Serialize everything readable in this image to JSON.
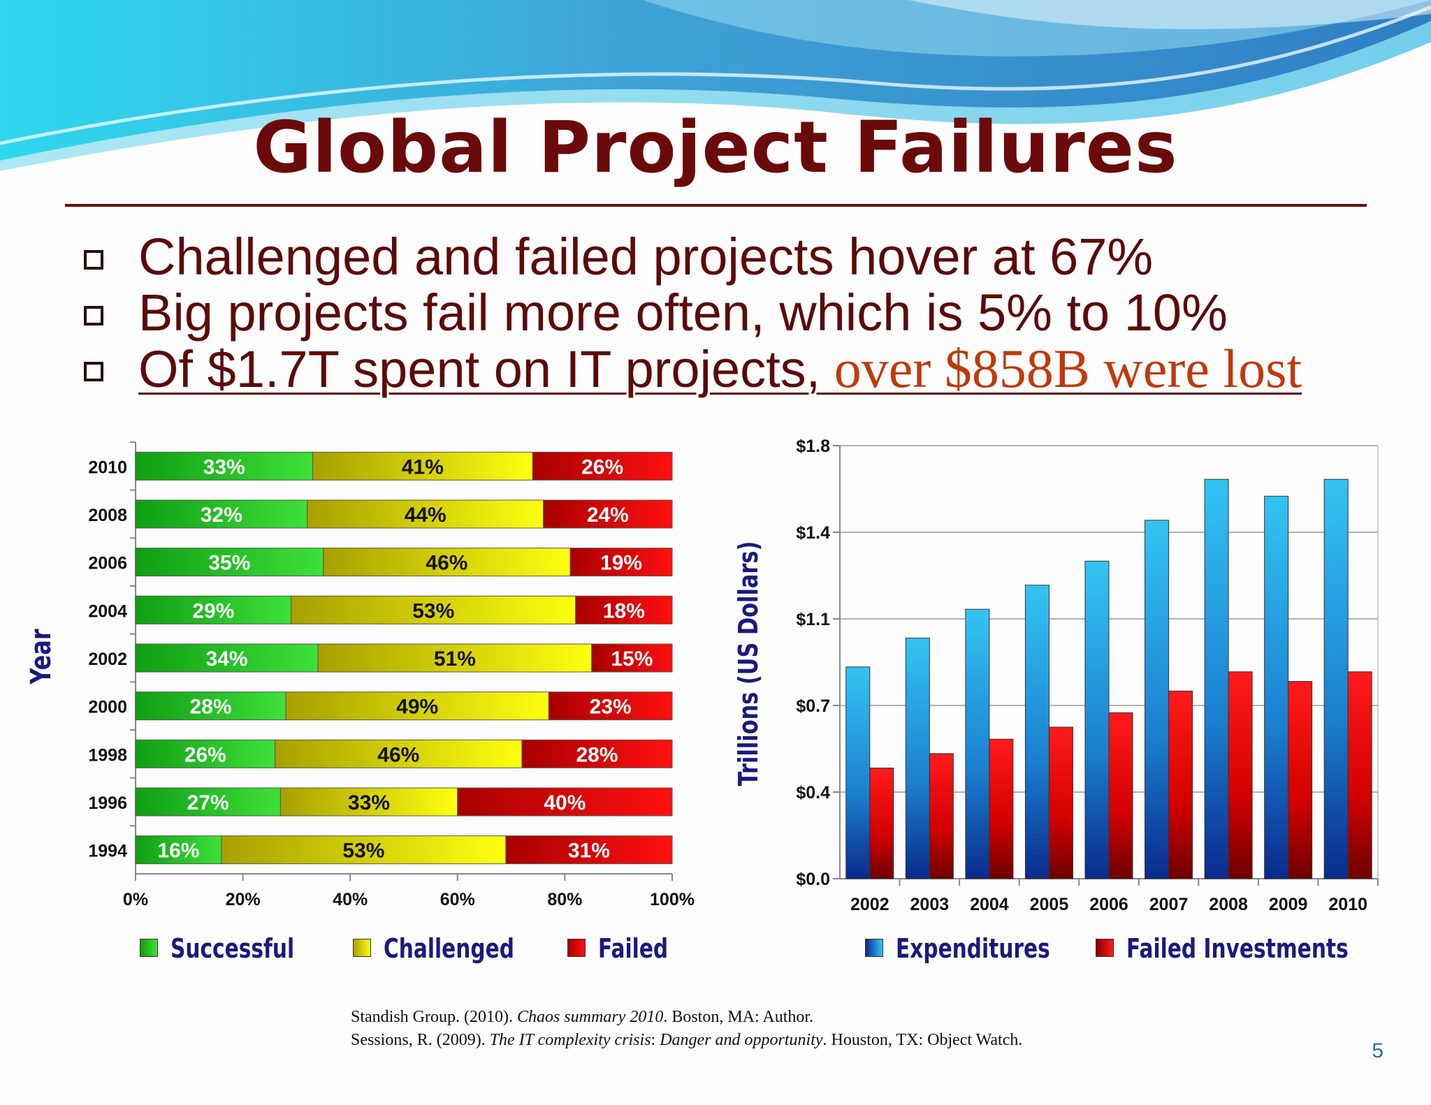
{
  "slide": {
    "title": "Global Project Failures",
    "bullets": [
      {
        "text": "Challenged and failed projects hover at 67%"
      },
      {
        "text": "Big projects fail more often, which is 5% to 10%"
      },
      {
        "text": "Of $1.7T spent on IT projects,",
        "highlight": " over $858B were lost"
      }
    ],
    "references": [
      {
        "before": "Standish Group. (2010). ",
        "italic": "Chaos summary 2010",
        "after": ". Boston, MA: Author."
      },
      {
        "before": "Sessions, R. (2009). ",
        "italic": "The IT complexity crisis",
        "italic_sep": ": ",
        "italic2": "Danger and opportunity",
        "after": ". Houston, TX: Object Watch."
      }
    ],
    "page_number": "5"
  },
  "colors": {
    "title": "#6b0a0a",
    "successful": "#22c21f",
    "challenged": "#e8e000",
    "failed": "#e00000",
    "expenditures": "#2fb6ea",
    "failed_investments": "#e01010",
    "legend_text": "#1a1a7e"
  },
  "chart_data": [
    {
      "type": "bar",
      "orientation": "horizontal",
      "stacked": true,
      "categories": [
        "2010",
        "2008",
        "2006",
        "2004",
        "2002",
        "2000",
        "1998",
        "1996",
        "1994"
      ],
      "series": [
        {
          "name": "Successful",
          "values": [
            33,
            32,
            35,
            29,
            34,
            28,
            26,
            27,
            16
          ],
          "labels": [
            "33%",
            "32%",
            "35%",
            "29%",
            "34%",
            "28%",
            "26%",
            "27%",
            "16%"
          ]
        },
        {
          "name": "Challenged",
          "values": [
            41,
            44,
            46,
            53,
            51,
            49,
            46,
            33,
            53
          ],
          "labels": [
            "41%",
            "44%",
            "46%",
            "53%",
            "51%",
            "49%",
            "46%",
            "33%",
            "53%"
          ]
        },
        {
          "name": "Failed",
          "values": [
            26,
            24,
            19,
            18,
            15,
            23,
            28,
            40,
            31
          ],
          "labels": [
            "26%",
            "24%",
            "19%",
            "18%",
            "15%",
            "23%",
            "28%",
            "40%",
            "31%"
          ]
        }
      ],
      "ylabel": "Year",
      "xlim": [
        0,
        100
      ],
      "xticks": [
        "0%",
        "20%",
        "40%",
        "60%",
        "80%",
        "100%"
      ],
      "legend_position": "bottom"
    },
    {
      "type": "bar",
      "categories": [
        "2002",
        "2003",
        "2004",
        "2005",
        "2006",
        "2007",
        "2008",
        "2009",
        "2010"
      ],
      "series": [
        {
          "name": "Expenditures",
          "values": [
            0.88,
            1.0,
            1.12,
            1.22,
            1.32,
            1.49,
            1.66,
            1.59,
            1.66
          ]
        },
        {
          "name": "Failed Investments",
          "values": [
            0.46,
            0.52,
            0.58,
            0.63,
            0.69,
            0.78,
            0.86,
            0.82,
            0.86
          ]
        }
      ],
      "ylabel": "Trillions (US Dollars)",
      "ylim": [
        0,
        1.8
      ],
      "yticks": [
        "$0.0",
        "$0.4",
        "$0.7",
        "$1.1",
        "$1.4",
        "$1.8"
      ],
      "grid": true,
      "legend_position": "bottom"
    }
  ]
}
